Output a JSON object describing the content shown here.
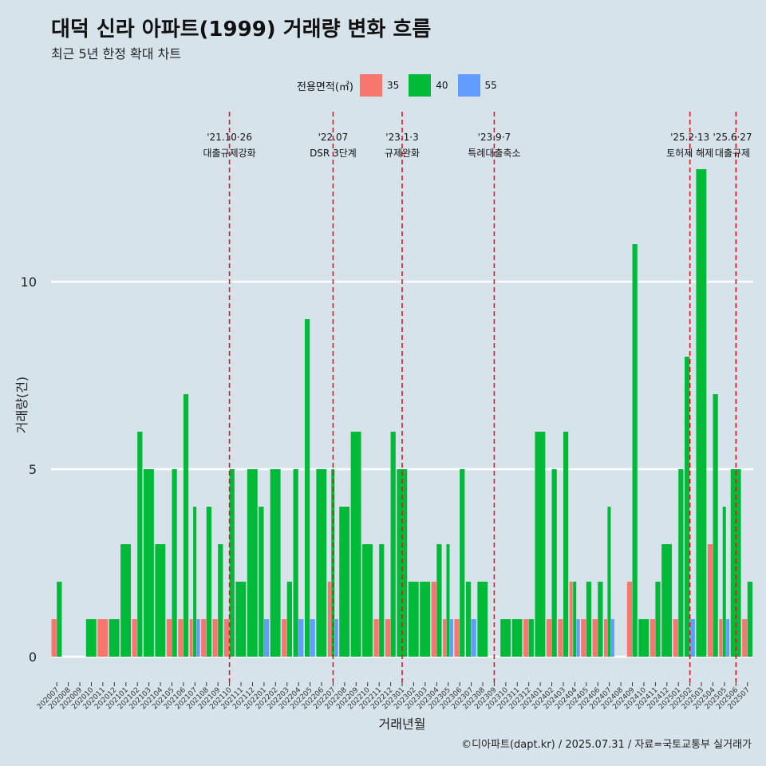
{
  "title": "대덕 신라 아파트(1999) 거래량 변화 흐름",
  "subtitle": "최근 5년 한정 확대 차트",
  "caption": "©디아파트(dapt.kr) / 2025.07.31 / 자료=국토교통부 실거래가",
  "legend": {
    "title": "전용면적(㎡)",
    "items": [
      {
        "label": "35",
        "color": "#f8766d"
      },
      {
        "label": "40",
        "color": "#00ba38"
      },
      {
        "label": "55",
        "color": "#619cff"
      }
    ]
  },
  "chart_data": {
    "type": "bar",
    "xlabel": "거래년월",
    "ylabel": "거래량(건)",
    "ylim": [
      0,
      13
    ],
    "yticks": [
      0,
      5,
      10
    ],
    "grid": true,
    "legend_position": "top",
    "categories": [
      "202007",
      "202008",
      "202009",
      "202010",
      "202011",
      "202012",
      "202101",
      "202102",
      "202103",
      "202104",
      "202105",
      "202106",
      "202107",
      "202108",
      "202109",
      "202110",
      "202111",
      "202112",
      "202201",
      "202202",
      "202203",
      "202204",
      "202205",
      "202206",
      "202207",
      "202208",
      "202209",
      "202210",
      "202211",
      "202212",
      "202301",
      "202302",
      "202303",
      "202304",
      "202305",
      "202306",
      "202307",
      "202308",
      "202309",
      "202310",
      "202311",
      "202312",
      "202401",
      "202402",
      "202403",
      "202404",
      "202405",
      "202406",
      "202407",
      "202408",
      "202409",
      "202410",
      "202411",
      "202412",
      "202501",
      "202502",
      "202503",
      "202504",
      "202505",
      "202506",
      "202507"
    ],
    "series": [
      {
        "name": "35",
        "color": "#f8766d",
        "values": [
          1,
          0,
          0,
          0,
          1,
          0,
          0,
          1,
          0,
          0,
          1,
          1,
          1,
          1,
          1,
          1,
          0,
          0,
          0,
          0,
          1,
          0,
          0,
          0,
          2,
          0,
          0,
          0,
          1,
          1,
          0,
          0,
          0,
          2,
          1,
          1,
          0,
          0,
          0,
          0,
          0,
          1,
          0,
          1,
          1,
          2,
          1,
          1,
          1,
          0,
          2,
          0,
          1,
          0,
          1,
          0,
          0,
          3,
          1,
          0,
          1
        ]
      },
      {
        "name": "40",
        "color": "#00ba38",
        "values": [
          2,
          0,
          0,
          1,
          0,
          1,
          3,
          6,
          5,
          3,
          5,
          7,
          4,
          4,
          3,
          5,
          2,
          5,
          4,
          5,
          2,
          5,
          9,
          5,
          5,
          4,
          6,
          3,
          3,
          6,
          5,
          2,
          2,
          3,
          3,
          5,
          2,
          2,
          0,
          1,
          1,
          1,
          6,
          5,
          6,
          2,
          2,
          2,
          4,
          0,
          11,
          1,
          2,
          3,
          5,
          8,
          13,
          7,
          4,
          5,
          2
        ]
      },
      {
        "name": "55",
        "color": "#619cff",
        "values": [
          0,
          0,
          0,
          0,
          0,
          0,
          0,
          0,
          0,
          0,
          0,
          0,
          1,
          0,
          0,
          0,
          0,
          0,
          1,
          0,
          0,
          1,
          1,
          0,
          1,
          0,
          0,
          0,
          0,
          0,
          0,
          0,
          0,
          0,
          1,
          0,
          1,
          0,
          0,
          0,
          0,
          0,
          0,
          0,
          0,
          1,
          0,
          0,
          1,
          0,
          0,
          0,
          0,
          0,
          0,
          1,
          0,
          0,
          1,
          0,
          0
        ]
      }
    ],
    "events": [
      {
        "at": "202110",
        "date": "'21.10·26",
        "label": "대출규제강화"
      },
      {
        "at": "202207",
        "date": "'22.07",
        "label": "DSR 3단계"
      },
      {
        "at": "202301",
        "date": "'23.1·3",
        "label": "규제완화"
      },
      {
        "at": "202309",
        "date": "'23.9·7",
        "label": "특례대출축소"
      },
      {
        "at": "202502",
        "date": "'25.2·13",
        "label": "토허제 해제"
      },
      {
        "at": "202506",
        "date": "'25.6·27",
        "label": "대출규제"
      }
    ]
  }
}
